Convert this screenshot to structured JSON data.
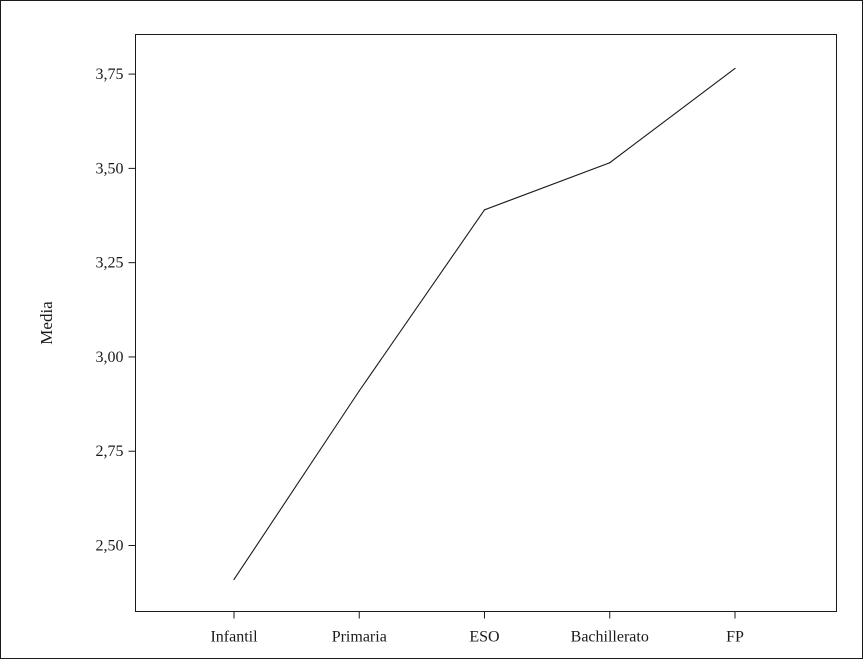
{
  "chart_data": {
    "type": "line",
    "categories": [
      "Infantil",
      "Primaria",
      "ESO",
      "Bachillerato",
      "FP"
    ],
    "series": [
      {
        "values": [
          2.41,
          2.91,
          3.39,
          3.515,
          3.765
        ]
      }
    ],
    "title": "",
    "xlabel": "",
    "ylabel": "Media",
    "ylim": [
      2.325,
      3.855
    ],
    "yticks": [
      2.5,
      2.75,
      3.0,
      3.25,
      3.5,
      3.75
    ],
    "ytick_labels": [
      "2,50",
      "2,75",
      "3,00",
      "3,25",
      "3,50",
      "3,75"
    ],
    "grid": false,
    "line_color": "#1a1a1a"
  }
}
